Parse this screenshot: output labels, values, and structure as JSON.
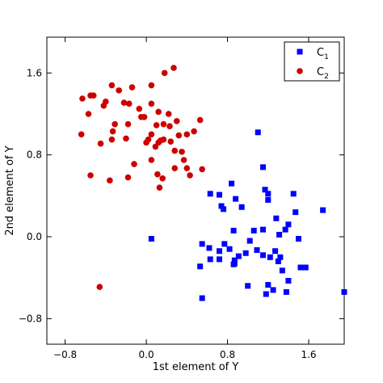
{
  "chart_data": {
    "type": "scatter",
    "title": "",
    "xlabel": "1st element of Y",
    "ylabel": "2nd element of Y",
    "xlim": [
      -0.98,
      1.95
    ],
    "ylim": [
      -1.05,
      1.95
    ],
    "xticks": [
      -0.8,
      0.0,
      0.8,
      1.6
    ],
    "xtick_labels": [
      "−0.8",
      "0.0",
      "0.8",
      "1.6"
    ],
    "yticks": [
      -0.8,
      0.0,
      0.8,
      1.6
    ],
    "ytick_labels": [
      "−0.8",
      "0.0",
      "0.8",
      "1.6"
    ],
    "grid": false,
    "legend_position": "top-right",
    "series": [
      {
        "name": "C",
        "subscript": "1",
        "marker": "square",
        "color": "#0000ff",
        "x": [
          1.1,
          1.15,
          0.84,
          0.63,
          0.72,
          0.88,
          0.74,
          1.17,
          1.2,
          1.2,
          1.45,
          1.47,
          1.74,
          0.76,
          0.94,
          1.28,
          1.4,
          1.37,
          1.15,
          1.06,
          0.86,
          1.02,
          1.31,
          1.5,
          0.55,
          0.77,
          0.72,
          0.62,
          0.53,
          0.72,
          0.63,
          0.82,
          0.87,
          0.91,
          0.87,
          0.98,
          1.09,
          1.15,
          1.22,
          1.27,
          1.32,
          1.3,
          1.34,
          1.4,
          1.52,
          1.57,
          1.95,
          1.25,
          1.38,
          1.2,
          1.18,
          1.0,
          0.55,
          0.86,
          0.05
        ],
        "y": [
          1.02,
          0.68,
          0.52,
          0.42,
          0.41,
          0.37,
          0.3,
          0.46,
          0.42,
          0.36,
          0.42,
          0.24,
          0.26,
          0.27,
          0.29,
          0.18,
          0.12,
          0.07,
          0.07,
          0.06,
          0.06,
          -0.04,
          0.02,
          -0.02,
          -0.07,
          -0.07,
          -0.14,
          -0.11,
          -0.29,
          -0.22,
          -0.22,
          -0.12,
          -0.23,
          -0.19,
          -0.26,
          -0.16,
          -0.13,
          -0.18,
          -0.2,
          -0.14,
          -0.2,
          -0.24,
          -0.33,
          -0.43,
          -0.3,
          -0.3,
          -0.54,
          -0.52,
          -0.54,
          -0.47,
          -0.56,
          -0.48,
          -0.6,
          -0.27,
          -0.02
        ]
      },
      {
        "name": "C",
        "subscript": "2",
        "marker": "circle",
        "color": "#cc0000",
        "x": [
          -0.63,
          -0.52,
          -0.34,
          -0.27,
          -0.14,
          0.05,
          0.18,
          0.27,
          -0.4,
          -0.22,
          -0.17,
          -0.07,
          0.05,
          0.12,
          0.22,
          0.3,
          -0.57,
          -0.31,
          -0.18,
          -0.05,
          -0.02,
          0.1,
          0.17,
          0.23,
          0.53,
          0.47,
          0.4,
          0.05,
          0.14,
          0.09,
          0.24,
          0.32,
          0.12,
          0.02,
          0.17,
          0.28,
          -0.34,
          -0.2,
          0.0,
          0.35,
          0.43,
          0.4,
          0.55,
          -0.45,
          -0.18,
          -0.12,
          0.11,
          0.16,
          0.28,
          0.37,
          -0.64,
          -0.55,
          -0.33,
          0.05,
          0.13,
          -0.55,
          -0.42,
          -0.36,
          -0.46
        ],
        "y": [
          1.35,
          1.38,
          1.48,
          1.43,
          1.46,
          1.48,
          1.6,
          1.65,
          1.32,
          1.31,
          1.3,
          1.25,
          1.3,
          1.22,
          1.2,
          1.13,
          1.2,
          1.1,
          1.1,
          1.17,
          1.17,
          1.09,
          1.1,
          1.08,
          1.14,
          1.03,
          1.0,
          1.0,
          0.94,
          0.88,
          0.93,
          0.99,
          0.92,
          0.95,
          0.95,
          0.84,
          0.95,
          0.96,
          0.92,
          0.83,
          0.6,
          0.67,
          0.66,
          0.91,
          0.58,
          0.71,
          0.61,
          0.57,
          0.67,
          0.75,
          1.0,
          1.38,
          1.03,
          0.75,
          0.48,
          0.6,
          1.28,
          0.55,
          -0.49
        ]
      }
    ]
  }
}
